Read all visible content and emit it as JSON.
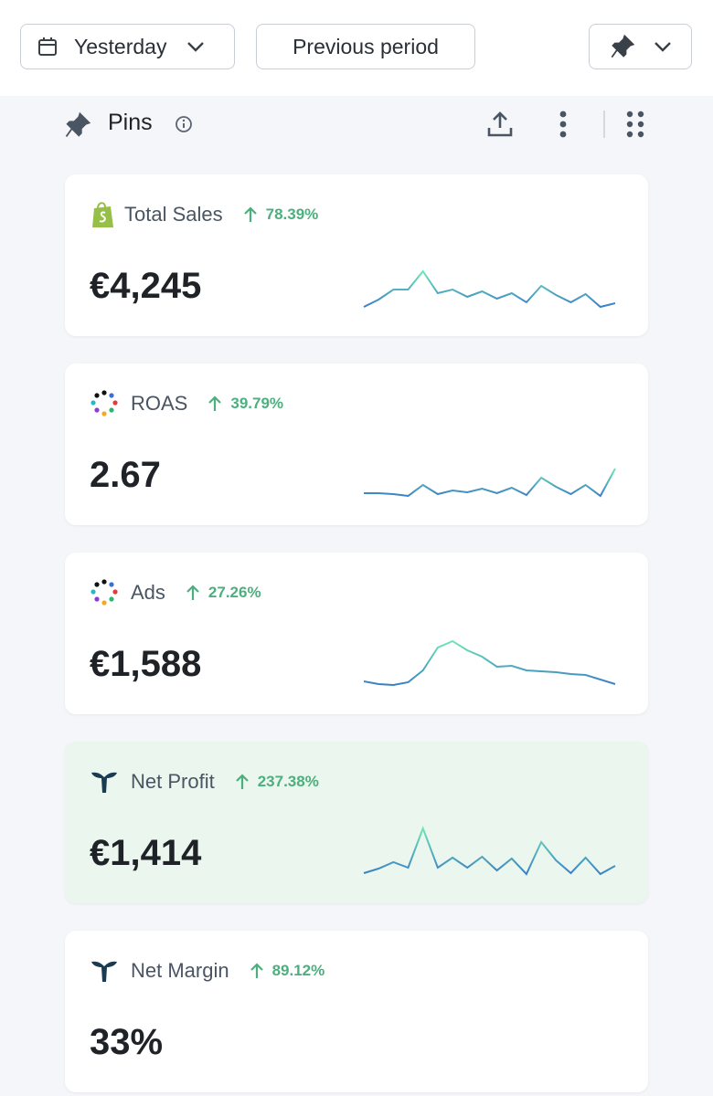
{
  "header": {
    "date_button": "Yesterday",
    "compare_button": "Previous period"
  },
  "section": {
    "title": "Pins"
  },
  "cards": [
    {
      "title": "Total Sales",
      "change": "78.39%",
      "value": "€4,245",
      "icon": "shopify",
      "trend": [
        23,
        31,
        42,
        42,
        62,
        38,
        42,
        34,
        40,
        32,
        38,
        28,
        46,
        36,
        28,
        37,
        23,
        27
      ]
    },
    {
      "title": "ROAS",
      "change": "39.79%",
      "value": "2.67",
      "icon": "dots",
      "trend": [
        63,
        63,
        62,
        60,
        72,
        62,
        66,
        64,
        68,
        63,
        69,
        61,
        80,
        70,
        62,
        72,
        60,
        90
      ]
    },
    {
      "title": "Ads",
      "change": "27.26%",
      "value": "€1,588",
      "icon": "dots",
      "trend": [
        53,
        50,
        49,
        52,
        65,
        90,
        97,
        87,
        80,
        69,
        70,
        65,
        64,
        63,
        61,
        60,
        55,
        50
      ]
    },
    {
      "title": "Net Profit",
      "change": "237.38%",
      "value": "€1,414",
      "icon": "whale",
      "highlight": true,
      "trend": [
        42,
        47,
        54,
        48,
        91,
        48,
        59,
        48,
        60,
        45,
        58,
        41,
        76,
        56,
        42,
        59,
        41,
        50
      ]
    },
    {
      "title": "Net Margin",
      "change": "89.12%",
      "value": "33%",
      "icon": "whale"
    }
  ]
}
